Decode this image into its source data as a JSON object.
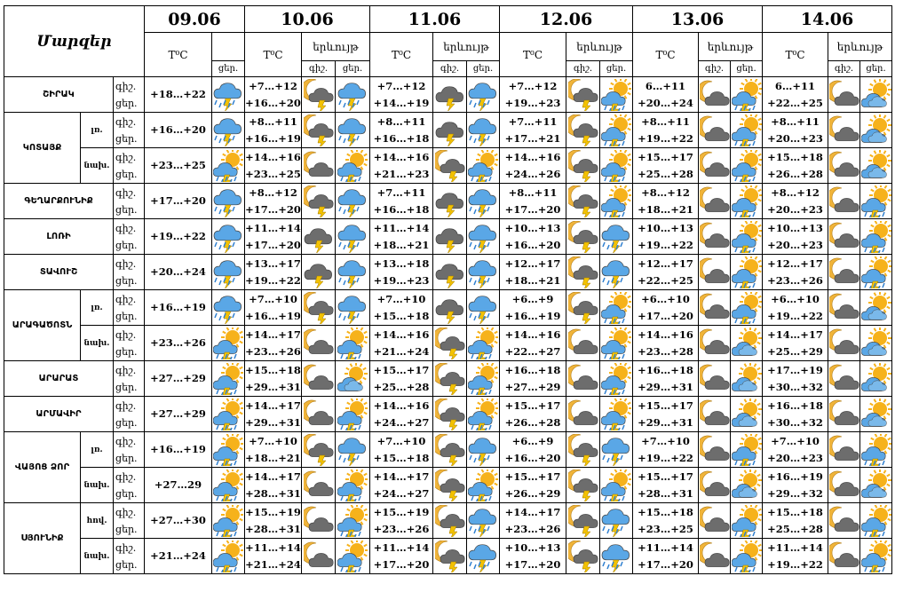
{
  "header": {
    "corner": "Մարզեր",
    "temp_label": "T⁰C",
    "phen_label": "երևույթ",
    "night": "գիշ.",
    "day": "ցեր."
  },
  "dates": [
    "09.06",
    "10.06",
    "11.06",
    "12.06",
    "13.06",
    "14.06"
  ],
  "icon_colors": {
    "sun": "#f6b21b",
    "moon": "#f0b43a",
    "cloud_dark": "#6d6d6d",
    "cloud_blue": "#5aa7e6",
    "rain": "#2f7fcf",
    "bolt": "#f3c200"
  },
  "rows": [
    {
      "region": "ՇԻՐԱԿ",
      "zone": "",
      "l1": "գիշ.",
      "l2": "ցեր.",
      "d0": "+18…+22",
      "i0": "storm_rain",
      "days": [
        {
          "n": "+7…+12",
          "d": "+16…+20",
          "a": "moon_storm",
          "b": "storm_rain"
        },
        {
          "n": "+7…+12",
          "d": "+14…+19",
          "a": "dark_storm",
          "b": "storm_rain"
        },
        {
          "n": "+7…+12",
          "d": "+19…+23",
          "a": "moon_storm",
          "b": "sun_storm"
        },
        {
          "n": "6…+11",
          "d": "+20…+24",
          "a": "moon_cloud",
          "b": "sun_storm"
        },
        {
          "n": "6…+11",
          "d": "+22…+25",
          "a": "moon_cloud",
          "b": "sun_cloud"
        }
      ]
    },
    {
      "region": "ԿՈՏԱՅՔ",
      "zone": "լռ.",
      "l1": "գիշ.",
      "l2": "ցեր.",
      "d0": "+16…+20",
      "i0": "storm_rain",
      "days": [
        {
          "n": "+8…+11",
          "d": "+16…+19",
          "a": "moon_storm",
          "b": "storm_rain"
        },
        {
          "n": "+8…+11",
          "d": "+16…+18",
          "a": "dark_storm",
          "b": "storm_rain"
        },
        {
          "n": "+7…+11",
          "d": "+17…+21",
          "a": "moon_storm",
          "b": "sun_storm"
        },
        {
          "n": "+8…+11",
          "d": "+19…+22",
          "a": "moon_cloud",
          "b": "sun_storm"
        },
        {
          "n": "+8…+11",
          "d": "+20…+23",
          "a": "moon_cloud",
          "b": "sun_cloud"
        }
      ]
    },
    {
      "region": "",
      "zone": "նախ.",
      "l1": "գիշ.",
      "l2": "ցեր.",
      "d0": "+23…+25",
      "i0": "sun_storm",
      "days": [
        {
          "n": "+14…+16",
          "d": "+23…+25",
          "a": "moon_cloud",
          "b": "sun_storm"
        },
        {
          "n": "+14…+16",
          "d": "+21…+23",
          "a": "moon_storm",
          "b": "sun_storm"
        },
        {
          "n": "+14…+16",
          "d": "+24…+26",
          "a": "moon_storm",
          "b": "sun_storm"
        },
        {
          "n": "+15…+17",
          "d": "+25…+28",
          "a": "moon_cloud",
          "b": "sun_storm"
        },
        {
          "n": "+15…+18",
          "d": "+26…+28",
          "a": "moon_cloud",
          "b": "sun_cloud"
        }
      ]
    },
    {
      "region": "ԳԵՂԱՐՔՈՒՆԻՔ",
      "zone": "",
      "l1": "գիշ.",
      "l2": "ցեր.",
      "d0": "+17…+20",
      "i0": "storm_rain",
      "days": [
        {
          "n": "+8…+12",
          "d": "+17…+20",
          "a": "moon_storm",
          "b": "storm_rain"
        },
        {
          "n": "+7…+11",
          "d": "+16…+18",
          "a": "dark_storm",
          "b": "storm_rain"
        },
        {
          "n": "+8…+11",
          "d": "+17…+20",
          "a": "moon_storm",
          "b": "sun_storm"
        },
        {
          "n": "+8…+12",
          "d": "+18…+21",
          "a": "moon_cloud",
          "b": "sun_storm"
        },
        {
          "n": "+8…+12",
          "d": "+20…+23",
          "a": "moon_cloud",
          "b": "sun_storm"
        }
      ]
    },
    {
      "region": "ԼՈՌԻ",
      "zone": "",
      "l1": "գիշ.",
      "l2": "ցեր.",
      "d0": "+19…+22",
      "i0": "storm_rain",
      "days": [
        {
          "n": "+11…+14",
          "d": "+17…+20",
          "a": "dark_storm",
          "b": "storm_rain"
        },
        {
          "n": "+11…+14",
          "d": "+18…+21",
          "a": "dark_storm",
          "b": "storm_rain"
        },
        {
          "n": "+10…+13",
          "d": "+16…+20",
          "a": "moon_storm",
          "b": "storm_rain"
        },
        {
          "n": "+10…+13",
          "d": "+19…+22",
          "a": "moon_cloud",
          "b": "sun_storm"
        },
        {
          "n": "+10…+13",
          "d": "+20…+23",
          "a": "moon_cloud",
          "b": "sun_storm"
        }
      ]
    },
    {
      "region": "ՏԱՎՈՒՇ",
      "zone": "",
      "l1": "գիշ.",
      "l2": "ցեր.",
      "d0": "+20…+24",
      "i0": "storm_rain",
      "days": [
        {
          "n": "+13…+17",
          "d": "+19…+22",
          "a": "dark_storm",
          "b": "storm_rain"
        },
        {
          "n": "+13…+18",
          "d": "+19…+23",
          "a": "dark_storm",
          "b": "storm_rain"
        },
        {
          "n": "+12…+17",
          "d": "+18…+21",
          "a": "moon_storm",
          "b": "storm_rain"
        },
        {
          "n": "+12…+17",
          "d": "+22…+25",
          "a": "moon_cloud",
          "b": "sun_storm"
        },
        {
          "n": "+12…+17",
          "d": "+23…+26",
          "a": "moon_cloud",
          "b": "sun_storm"
        }
      ]
    },
    {
      "region": "ԱՐԱԳԱԾՈՏՆ",
      "zone": "լռ.",
      "l1": "գիշ.",
      "l2": "ցեր.",
      "d0": "+16…+19",
      "i0": "storm_rain",
      "days": [
        {
          "n": "+7…+10",
          "d": "+16…+19",
          "a": "moon_storm",
          "b": "storm_rain"
        },
        {
          "n": "+7…+10",
          "d": "+15…+18",
          "a": "dark_storm",
          "b": "storm_rain"
        },
        {
          "n": "+6…+9",
          "d": "+16…+19",
          "a": "moon_storm",
          "b": "sun_storm"
        },
        {
          "n": "+6…+10",
          "d": "+17…+20",
          "a": "moon_cloud",
          "b": "sun_storm"
        },
        {
          "n": "+6…+10",
          "d": "+19…+22",
          "a": "moon_cloud",
          "b": "sun_cloud"
        }
      ]
    },
    {
      "region": "",
      "zone": "նախ.",
      "l1": "գիշ.",
      "l2": "ցեր.",
      "d0": "+23…+26",
      "i0": "sun_storm",
      "days": [
        {
          "n": "+14…+17",
          "d": "+23…+26",
          "a": "moon_cloud",
          "b": "sun_storm"
        },
        {
          "n": "+14…+16",
          "d": "+21…+24",
          "a": "moon_storm",
          "b": "sun_storm"
        },
        {
          "n": "+14…+16",
          "d": "+22…+27",
          "a": "moon_cloud",
          "b": "sun_storm"
        },
        {
          "n": "+14…+16",
          "d": "+23…+28",
          "a": "moon_cloud",
          "b": "sun_cloud"
        },
        {
          "n": "+14…+17",
          "d": "+25…+29",
          "a": "moon_cloud",
          "b": "sun_cloud"
        }
      ]
    },
    {
      "region": "ԱՐԱՐԱՏ",
      "zone": "",
      "l1": "գիշ.",
      "l2": "ցեր.",
      "d0": "+27…+29",
      "i0": "sun_storm",
      "days": [
        {
          "n": "+15…+18",
          "d": "+29…+31",
          "a": "moon_cloud",
          "b": "sun_cloud"
        },
        {
          "n": "+15…+17",
          "d": "+25…+28",
          "a": "moon_storm",
          "b": "sun_storm"
        },
        {
          "n": "+16…+18",
          "d": "+27…+29",
          "a": "moon_cloud",
          "b": "sun_storm"
        },
        {
          "n": "+16…+18",
          "d": "+29…+31",
          "a": "moon_cloud",
          "b": "sun_cloud"
        },
        {
          "n": "+17…+19",
          "d": "+30…+32",
          "a": "moon_cloud",
          "b": "sun_cloud"
        }
      ]
    },
    {
      "region": "ԱՐՄԱՎԻՐ",
      "zone": "",
      "l1": "գիշ.",
      "l2": "ցեր.",
      "d0": "+27…+29",
      "i0": "sun_storm",
      "days": [
        {
          "n": "+14…+17",
          "d": "+29…+31",
          "a": "moon_cloud",
          "b": "sun_storm"
        },
        {
          "n": "+14…+16",
          "d": "+24…+27",
          "a": "moon_storm",
          "b": "sun_storm"
        },
        {
          "n": "+15…+17",
          "d": "+26…+28",
          "a": "moon_cloud",
          "b": "sun_storm"
        },
        {
          "n": "+15…+17",
          "d": "+29…+31",
          "a": "moon_cloud",
          "b": "sun_cloud"
        },
        {
          "n": "+16…+18",
          "d": "+30…+32",
          "a": "moon_cloud",
          "b": "sun_cloud"
        }
      ]
    },
    {
      "region": "ՎԱՅՈՑ ՁՈՐ",
      "zone": "լռ.",
      "l1": "գիշ.",
      "l2": "ցեր.",
      "d0": "+16…+19",
      "i0": "sun_storm",
      "days": [
        {
          "n": "+7…+10",
          "d": "+18…+21",
          "a": "moon_storm",
          "b": "storm_rain"
        },
        {
          "n": "+7…+10",
          "d": "+15…+18",
          "a": "moon_storm",
          "b": "storm_rain"
        },
        {
          "n": "+6…+9",
          "d": "+16…+20",
          "a": "moon_storm",
          "b": "storm_rain"
        },
        {
          "n": "+7…+10",
          "d": "+19…+22",
          "a": "moon_cloud",
          "b": "sun_storm"
        },
        {
          "n": "+7…+10",
          "d": "+20…+23",
          "a": "moon_cloud",
          "b": "sun_storm"
        }
      ]
    },
    {
      "region": "",
      "zone": "նախ.",
      "l1": "գիշ.",
      "l2": "ցեր.",
      "d0": "+27…29",
      "i0": "sun_storm",
      "days": [
        {
          "n": "+14…+17",
          "d": "+28…+31",
          "a": "moon_cloud",
          "b": "sun_storm"
        },
        {
          "n": "+14…+17",
          "d": "+24…+27",
          "a": "moon_storm",
          "b": "sun_storm"
        },
        {
          "n": "+15…+17",
          "d": "+26…+29",
          "a": "moon_storm",
          "b": "sun_storm"
        },
        {
          "n": "+15…+17",
          "d": "+28…+31",
          "a": "moon_cloud",
          "b": "sun_cloud"
        },
        {
          "n": "+16…+19",
          "d": "+29…+32",
          "a": "moon_cloud",
          "b": "sun_cloud"
        }
      ]
    },
    {
      "region": "ՍՅՈՒՆԻՔ",
      "zone": "հով.",
      "l1": "գիշ.",
      "l2": "ցեր.",
      "d0": "+27…+30",
      "i0": "sun_storm",
      "days": [
        {
          "n": "+15…+19",
          "d": "+28…+31",
          "a": "moon_cloud",
          "b": "sun_storm"
        },
        {
          "n": "+15…+19",
          "d": "+23…+26",
          "a": "moon_storm",
          "b": "storm_rain"
        },
        {
          "n": "+14…+17",
          "d": "+23…+26",
          "a": "moon_storm",
          "b": "storm_rain"
        },
        {
          "n": "+15…+18",
          "d": "+23…+25",
          "a": "moon_cloud",
          "b": "sun_storm"
        },
        {
          "n": "+15…+18",
          "d": "+25…+28",
          "a": "moon_cloud",
          "b": "sun_storm"
        }
      ]
    },
    {
      "region": "",
      "zone": "նախ.",
      "l1": "գիշ.",
      "l2": "ցեր.",
      "d0": "+21…+24",
      "i0": "sun_storm",
      "days": [
        {
          "n": "+11…+14",
          "d": "+21…+24",
          "a": "moon_cloud",
          "b": "sun_storm"
        },
        {
          "n": "+11…+14",
          "d": "+17…+20",
          "a": "moon_storm",
          "b": "storm_rain"
        },
        {
          "n": "+10…+13",
          "d": "+17…+20",
          "a": "moon_storm",
          "b": "storm_rain"
        },
        {
          "n": "+11…+14",
          "d": "+17…+20",
          "a": "moon_cloud",
          "b": "sun_storm"
        },
        {
          "n": "+11…+14",
          "d": "+19…+22",
          "a": "moon_cloud",
          "b": "sun_storm"
        }
      ]
    }
  ]
}
